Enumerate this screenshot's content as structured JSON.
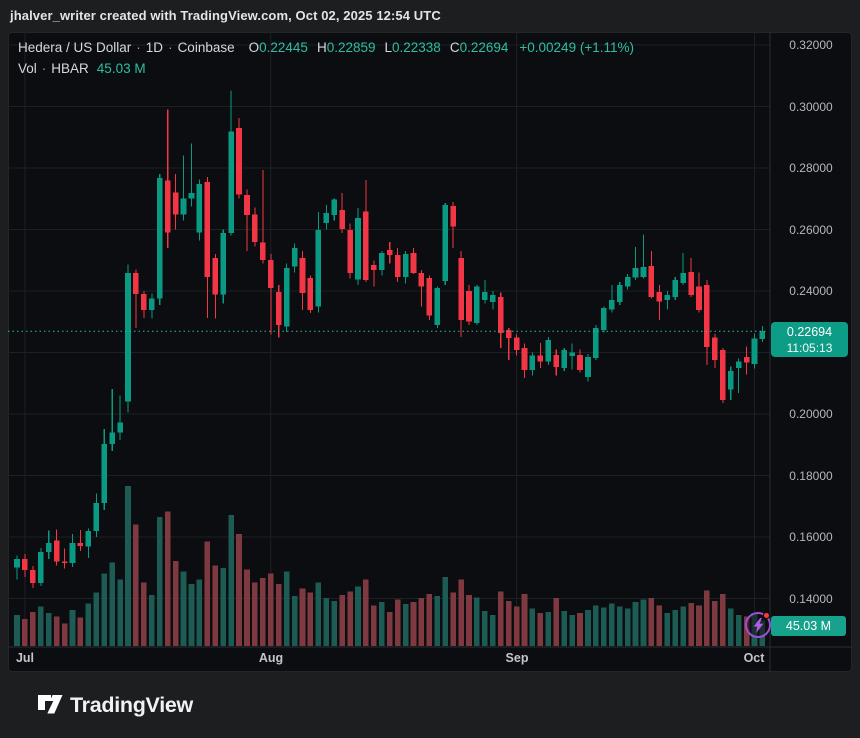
{
  "banner": {
    "text": "jhalver_writer created with TradingView.com, Oct 02, 2025 12:54 UTC"
  },
  "header": {
    "symbol": "Hedera / US Dollar",
    "separator": "·",
    "interval": "1D",
    "exchange": "Coinbase",
    "ohlc": {
      "o_label": "O",
      "o": "0.22445",
      "h_label": "H",
      "h": "0.22859",
      "l_label": "L",
      "l": "0.22338",
      "c_label": "C",
      "c": "0.22694",
      "change": "+0.00249 (+1.11%)"
    },
    "volume_row": {
      "label": "Vol",
      "separator": "·",
      "ticker": "HBAR",
      "value": "45.03 M"
    }
  },
  "price_axis": {
    "ticks": [
      {
        "label": "0.32000",
        "price": 0.32
      },
      {
        "label": "0.30000",
        "price": 0.3
      },
      {
        "label": "0.28000",
        "price": 0.28
      },
      {
        "label": "0.26000",
        "price": 0.26
      },
      {
        "label": "0.24000",
        "price": 0.24
      },
      {
        "label": "0.22000",
        "price": 0.22
      },
      {
        "label": "0.20000",
        "price": 0.2
      },
      {
        "label": "0.18000",
        "price": 0.18
      },
      {
        "label": "0.16000",
        "price": 0.16
      },
      {
        "label": "0.14000",
        "price": 0.14
      }
    ]
  },
  "time_axis": {
    "months": [
      {
        "label": "Jul",
        "candle_index": 1
      },
      {
        "label": "Aug",
        "candle_index": 32
      },
      {
        "label": "Sep",
        "candle_index": 63
      },
      {
        "label": "Oct",
        "candle_index": 93
      }
    ]
  },
  "last_price_label": {
    "price": "0.22694",
    "countdown": "11:05:13"
  },
  "volume_axis_label": {
    "value": "45.03 M"
  },
  "logo": {
    "text": "TradingView"
  },
  "colors": {
    "up": "#0a9a83",
    "down": "#f23645",
    "vol_up": "#1d5c55",
    "vol_down": "#7f3a41",
    "accent_text": "#2cbfa4",
    "badge_price": "#0d9c85",
    "badge_volume": "#17a28c",
    "grid": "#1d2025",
    "axis_line": "#2a2d33",
    "dotted_line": "#2ab9a0",
    "panel_bg": "#0c0d10",
    "outer_bg": "#1d1e20"
  },
  "chart_data": {
    "type": "candlestick",
    "title": "Hedera / US Dollar",
    "exchange": "Coinbase",
    "interval": "1D",
    "volume_indicator": "Vol · HBAR",
    "price_axis_range": [
      0.131,
      0.327
    ],
    "visible_price_ticks": [
      0.14,
      0.16,
      0.18,
      0.2,
      0.22,
      0.24,
      0.26,
      0.28,
      0.3,
      0.32
    ],
    "last_close": 0.22694,
    "last_change": 0.00249,
    "last_change_pct": 1.11,
    "last_volume_m": 45.03,
    "countdown_to_close": "11:05:13",
    "volume_unit": "M",
    "max_volume_m": 283,
    "month_start_indices": [
      1,
      32,
      63,
      93
    ],
    "candles": {
      "columns": [
        "date",
        "open",
        "high",
        "low",
        "close",
        "volume_m"
      ],
      "rows": [
        [
          "2025-06-30",
          0.15,
          0.154,
          0.1462,
          0.1528,
          55
        ],
        [
          "2025-07-01",
          0.1528,
          0.1545,
          0.147,
          0.1492,
          48
        ],
        [
          "2025-07-02",
          0.1492,
          0.1505,
          0.1434,
          0.145,
          60
        ],
        [
          "2025-07-03",
          0.145,
          0.1565,
          0.144,
          0.1552,
          70
        ],
        [
          "2025-07-04",
          0.1552,
          0.1621,
          0.1528,
          0.158,
          58
        ],
        [
          "2025-07-05",
          0.1588,
          0.1624,
          0.1508,
          0.1521,
          52
        ],
        [
          "2025-07-06",
          0.1521,
          0.1562,
          0.1498,
          0.1515,
          40
        ],
        [
          "2025-07-07",
          0.1515,
          0.161,
          0.1502,
          0.1581,
          64
        ],
        [
          "2025-07-08",
          0.1581,
          0.1622,
          0.1555,
          0.157,
          50
        ],
        [
          "2025-07-09",
          0.157,
          0.1628,
          0.1532,
          0.1619,
          75
        ],
        [
          "2025-07-10",
          0.1619,
          0.1742,
          0.16,
          0.171,
          95
        ],
        [
          "2025-07-11",
          0.171,
          0.1952,
          0.1688,
          0.1902,
          128
        ],
        [
          "2025-07-12",
          0.1902,
          0.2082,
          0.188,
          0.194,
          148
        ],
        [
          "2025-07-13",
          0.194,
          0.206,
          0.1915,
          0.1972,
          118
        ],
        [
          "2025-07-14",
          0.204,
          0.2486,
          0.2005,
          0.2458,
          283
        ],
        [
          "2025-07-15",
          0.2458,
          0.247,
          0.228,
          0.239,
          215
        ],
        [
          "2025-07-16",
          0.239,
          0.24,
          0.2312,
          0.2338,
          112
        ],
        [
          "2025-07-17",
          0.2338,
          0.2392,
          0.231,
          0.2376,
          90
        ],
        [
          "2025-07-18",
          0.2376,
          0.278,
          0.2355,
          0.2768,
          228
        ],
        [
          "2025-07-19",
          0.276,
          0.299,
          0.254,
          0.259,
          238
        ],
        [
          "2025-07-20",
          0.272,
          0.278,
          0.26,
          0.2648,
          150
        ],
        [
          "2025-07-21",
          0.2648,
          0.284,
          0.263,
          0.27,
          132
        ],
        [
          "2025-07-22",
          0.27,
          0.288,
          0.2675,
          0.2718,
          110
        ],
        [
          "2025-07-23",
          0.259,
          0.2762,
          0.2565,
          0.2748,
          118
        ],
        [
          "2025-07-24",
          0.2755,
          0.277,
          0.2313,
          0.2446,
          185
        ],
        [
          "2025-07-25",
          0.2508,
          0.252,
          0.231,
          0.2388,
          142
        ],
        [
          "2025-07-26",
          0.2388,
          0.26,
          0.236,
          0.2589,
          138
        ],
        [
          "2025-07-27",
          0.2589,
          0.3052,
          0.258,
          0.2918,
          232
        ],
        [
          "2025-07-28",
          0.293,
          0.2962,
          0.27,
          0.2713,
          198
        ],
        [
          "2025-07-29",
          0.2713,
          0.273,
          0.253,
          0.2648,
          135
        ],
        [
          "2025-07-30",
          0.2648,
          0.2672,
          0.2545,
          0.256,
          112
        ],
        [
          "2025-07-31",
          0.2557,
          0.2794,
          0.249,
          0.2501,
          120
        ],
        [
          "2025-08-01",
          0.2501,
          0.252,
          0.2258,
          0.241,
          128
        ],
        [
          "2025-08-02",
          0.2397,
          0.242,
          0.2248,
          0.229,
          110
        ],
        [
          "2025-08-03",
          0.2285,
          0.249,
          0.2267,
          0.2475,
          132
        ],
        [
          "2025-08-04",
          0.248,
          0.2555,
          0.246,
          0.254,
          88
        ],
        [
          "2025-08-05",
          0.2508,
          0.253,
          0.2339,
          0.2394,
          102
        ],
        [
          "2025-08-06",
          0.2443,
          0.245,
          0.2329,
          0.2339,
          95
        ],
        [
          "2025-08-07",
          0.235,
          0.2657,
          0.233,
          0.2599,
          112
        ],
        [
          "2025-08-08",
          0.2621,
          0.268,
          0.26,
          0.2654,
          85
        ],
        [
          "2025-08-09",
          0.2648,
          0.27,
          0.263,
          0.2697,
          80
        ],
        [
          "2025-08-10",
          0.2664,
          0.2719,
          0.2589,
          0.2601,
          90
        ],
        [
          "2025-08-11",
          0.2599,
          0.262,
          0.244,
          0.2459,
          96
        ],
        [
          "2025-08-12",
          0.2438,
          0.267,
          0.242,
          0.2638,
          105
        ],
        [
          "2025-08-13",
          0.2658,
          0.2761,
          0.243,
          0.2436,
          118
        ],
        [
          "2025-08-14",
          0.2485,
          0.25,
          0.2414,
          0.2469,
          72
        ],
        [
          "2025-08-15",
          0.2469,
          0.253,
          0.245,
          0.2524,
          78
        ],
        [
          "2025-08-16",
          0.2533,
          0.256,
          0.249,
          0.2517,
          60
        ],
        [
          "2025-08-17",
          0.2517,
          0.254,
          0.243,
          0.2446,
          82
        ],
        [
          "2025-08-18",
          0.2446,
          0.253,
          0.2425,
          0.252,
          74
        ],
        [
          "2025-08-19",
          0.2524,
          0.254,
          0.2455,
          0.2459,
          78
        ],
        [
          "2025-08-20",
          0.2459,
          0.2469,
          0.2349,
          0.2414,
          85
        ],
        [
          "2025-08-21",
          0.2443,
          0.245,
          0.2306,
          0.232,
          92
        ],
        [
          "2025-08-22",
          0.229,
          0.2415,
          0.228,
          0.241,
          88
        ],
        [
          "2025-08-23",
          0.2433,
          0.2686,
          0.242,
          0.268,
          122
        ],
        [
          "2025-08-24",
          0.2676,
          0.269,
          0.254,
          0.261,
          95
        ],
        [
          "2025-08-25",
          0.2508,
          0.253,
          0.225,
          0.2306,
          118
        ],
        [
          "2025-08-26",
          0.24,
          0.242,
          0.229,
          0.23,
          90
        ],
        [
          "2025-08-27",
          0.2296,
          0.242,
          0.229,
          0.2414,
          86
        ],
        [
          "2025-08-28",
          0.2371,
          0.2436,
          0.236,
          0.2397,
          62
        ],
        [
          "2025-08-29",
          0.2365,
          0.24,
          0.234,
          0.2387,
          55
        ],
        [
          "2025-08-30",
          0.2381,
          0.2395,
          0.2215,
          0.2264,
          96
        ],
        [
          "2025-08-31",
          0.2273,
          0.228,
          0.2176,
          0.2248,
          80
        ],
        [
          "2025-09-01",
          0.2248,
          0.226,
          0.219,
          0.2208,
          70
        ],
        [
          "2025-09-02",
          0.2215,
          0.223,
          0.2117,
          0.2143,
          92
        ],
        [
          "2025-09-03",
          0.2143,
          0.22,
          0.2125,
          0.219,
          66
        ],
        [
          "2025-09-04",
          0.219,
          0.2231,
          0.215,
          0.217,
          58
        ],
        [
          "2025-09-05",
          0.217,
          0.225,
          0.216,
          0.2241,
          60
        ],
        [
          "2025-09-06",
          0.2192,
          0.221,
          0.2125,
          0.2153,
          85
        ],
        [
          "2025-09-07",
          0.215,
          0.2215,
          0.214,
          0.2208,
          62
        ],
        [
          "2025-09-08",
          0.2188,
          0.223,
          0.2145,
          0.22,
          55
        ],
        [
          "2025-09-09",
          0.2192,
          0.221,
          0.2135,
          0.2143,
          58
        ],
        [
          "2025-09-10",
          0.2121,
          0.2195,
          0.2105,
          0.2186,
          64
        ],
        [
          "2025-09-11",
          0.2182,
          0.229,
          0.2175,
          0.228,
          72
        ],
        [
          "2025-09-12",
          0.2273,
          0.235,
          0.2265,
          0.2345,
          68
        ],
        [
          "2025-09-13",
          0.2339,
          0.242,
          0.233,
          0.2371,
          75
        ],
        [
          "2025-09-14",
          0.2365,
          0.243,
          0.2355,
          0.242,
          70
        ],
        [
          "2025-09-15",
          0.2414,
          0.2455,
          0.2405,
          0.2446,
          66
        ],
        [
          "2025-09-16",
          0.2443,
          0.2543,
          0.2435,
          0.2475,
          78
        ],
        [
          "2025-09-17",
          0.2446,
          0.2583,
          0.244,
          0.2478,
          82
        ],
        [
          "2025-09-18",
          0.2482,
          0.253,
          0.2375,
          0.2381,
          85
        ],
        [
          "2025-09-19",
          0.2397,
          0.242,
          0.2306,
          0.2365,
          72
        ],
        [
          "2025-09-20",
          0.2371,
          0.24,
          0.234,
          0.2387,
          58
        ],
        [
          "2025-09-21",
          0.2381,
          0.2445,
          0.237,
          0.2436,
          64
        ],
        [
          "2025-09-22",
          0.2426,
          0.2524,
          0.242,
          0.2459,
          70
        ],
        [
          "2025-09-23",
          0.2462,
          0.2508,
          0.238,
          0.2387,
          76
        ],
        [
          "2025-09-24",
          0.2414,
          0.246,
          0.233,
          0.2339,
          72
        ],
        [
          "2025-09-25",
          0.242,
          0.2435,
          0.216,
          0.2218,
          98
        ],
        [
          "2025-09-26",
          0.2248,
          0.226,
          0.215,
          0.2176,
          80
        ],
        [
          "2025-09-27",
          0.2208,
          0.2215,
          0.2036,
          0.2046,
          92
        ],
        [
          "2025-09-28",
          0.208,
          0.2155,
          0.2046,
          0.214,
          66
        ],
        [
          "2025-09-29",
          0.215,
          0.218,
          0.2069,
          0.217,
          55
        ],
        [
          "2025-09-30",
          0.2186,
          0.2219,
          0.2128,
          0.2168,
          52
        ],
        [
          "2025-10-01",
          0.2163,
          0.2262,
          0.2148,
          0.2245,
          58
        ],
        [
          "2025-10-02",
          0.22445,
          0.22859,
          0.22338,
          0.22694,
          45.03
        ]
      ]
    }
  }
}
